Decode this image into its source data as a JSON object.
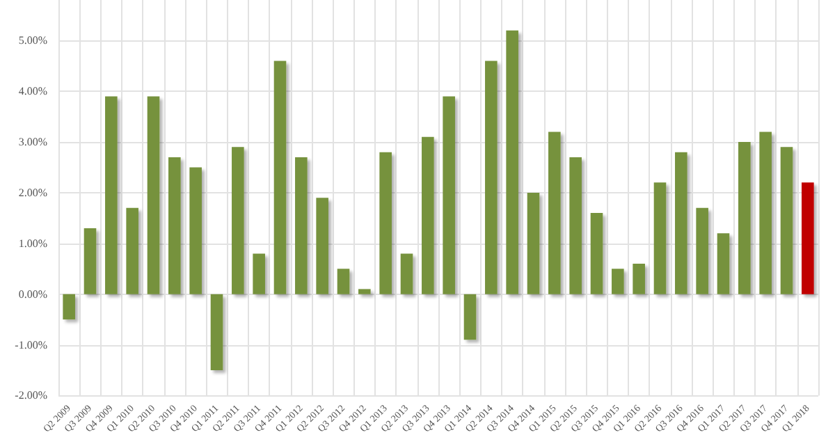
{
  "chart_data": {
    "type": "bar",
    "categories": [
      "Q2 2009",
      "Q3 2009",
      "Q4 2009",
      "Q1 2010",
      "Q2 2010",
      "Q3 2010",
      "Q4 2010",
      "Q1 2011",
      "Q2 2011",
      "Q3 2011",
      "Q4 2011",
      "Q1 2012",
      "Q2 2012",
      "Q3 2012",
      "Q4 2012",
      "Q1 2013",
      "Q2 2013",
      "Q3 2013",
      "Q4 2013",
      "Q1 2014",
      "Q2 2014",
      "Q3 2014",
      "Q4 2014",
      "Q1 2015",
      "Q2 2015",
      "Q3 2015",
      "Q4 2015",
      "Q1 2016",
      "Q2 2016",
      "Q3 2016",
      "Q4 2016",
      "Q1 2017",
      "Q2 2017",
      "Q3 2017",
      "Q4 2017",
      "Q1 2018"
    ],
    "values": [
      -0.5,
      1.3,
      3.9,
      1.7,
      3.9,
      2.7,
      2.5,
      -1.5,
      2.9,
      0.8,
      4.6,
      2.7,
      1.9,
      0.5,
      0.1,
      2.8,
      0.8,
      3.1,
      3.9,
      -0.9,
      4.6,
      5.2,
      2.0,
      3.2,
      2.7,
      1.6,
      0.5,
      0.6,
      2.2,
      2.8,
      1.7,
      1.2,
      3.0,
      3.2,
      2.9,
      2.2
    ],
    "colors": [
      "#76923c",
      "#76923c",
      "#76923c",
      "#76923c",
      "#76923c",
      "#76923c",
      "#76923c",
      "#76923c",
      "#76923c",
      "#76923c",
      "#76923c",
      "#76923c",
      "#76923c",
      "#76923c",
      "#76923c",
      "#76923c",
      "#76923c",
      "#76923c",
      "#76923c",
      "#76923c",
      "#76923c",
      "#76923c",
      "#76923c",
      "#76923c",
      "#76923c",
      "#76923c",
      "#76923c",
      "#76923c",
      "#76923c",
      "#76923c",
      "#76923c",
      "#76923c",
      "#76923c",
      "#76923c",
      "#76923c",
      "#c00000"
    ],
    "ylim": [
      -2,
      5.8
    ],
    "yticks": [
      {
        "value": -2,
        "label": "-2.00%"
      },
      {
        "value": -1,
        "label": "-1.00%"
      },
      {
        "value": 0,
        "label": "0.00%"
      },
      {
        "value": 1,
        "label": "1.00%"
      },
      {
        "value": 2,
        "label": "2.00%"
      },
      {
        "value": 3,
        "label": "3.00%"
      },
      {
        "value": 4,
        "label": "4.00%"
      },
      {
        "value": 5,
        "label": "5.00%"
      }
    ],
    "grid": true
  }
}
